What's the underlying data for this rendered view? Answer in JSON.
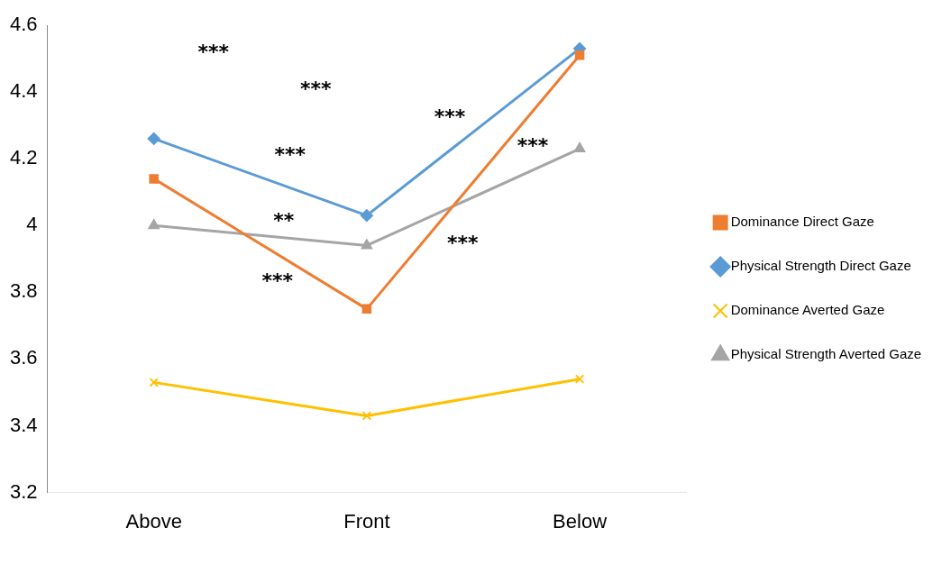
{
  "chart_data": {
    "type": "line",
    "categories": [
      "Above",
      "Front",
      "Below"
    ],
    "series": [
      {
        "name": "Dominance Direct Gaze",
        "color": "#ed7d31",
        "marker": "square",
        "values": [
          4.14,
          3.75,
          4.51
        ]
      },
      {
        "name": "Physical Strength Direct Gaze",
        "color": "#5b9bd5",
        "marker": "diamond",
        "values": [
          4.26,
          4.03,
          4.53
        ]
      },
      {
        "name": "Dominance Averted Gaze",
        "color": "#ffc000",
        "marker": "cross",
        "values": [
          3.53,
          3.43,
          3.54
        ]
      },
      {
        "name": "Physical Strength Averted Gaze",
        "color": "#a5a5a5",
        "marker": "triangle",
        "values": [
          4.0,
          3.94,
          4.23
        ]
      }
    ],
    "ylim": [
      3.2,
      4.6
    ],
    "yticks": [
      3.2,
      3.4,
      3.6,
      3.8,
      4,
      4.2,
      4.4,
      4.6
    ],
    "grid": false,
    "legend": "right",
    "annotations": [
      "***",
      "***",
      "***",
      "**",
      "***",
      "***",
      "***",
      "***"
    ]
  }
}
